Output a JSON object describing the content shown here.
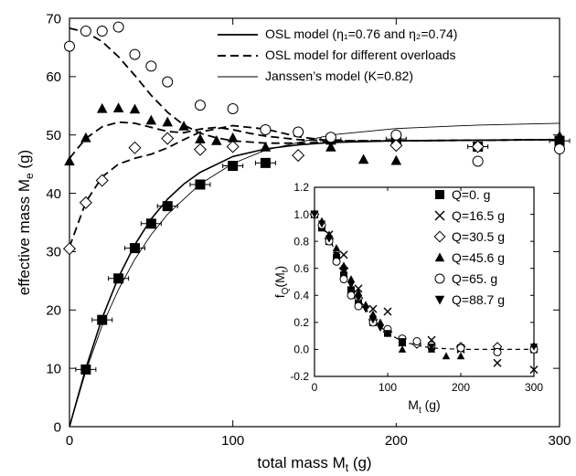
{
  "chart_data": [
    {
      "type": "scatter",
      "xlabel": {
        "main": "total mass M",
        "sub": "t",
        "tail": " (g)"
      },
      "ylabel": {
        "main": "effective mass M",
        "sub": "e",
        "tail": " (g)"
      },
      "xlim": [
        0,
        300
      ],
      "ylim": [
        0,
        70
      ],
      "xticks": [
        0,
        100,
        200,
        300
      ],
      "yticks": [
        0,
        10,
        20,
        30,
        40,
        50,
        60,
        70
      ],
      "legend": {
        "position": "top-right",
        "entries": [
          {
            "label": "OSL model (η₁=0.76 and η₂=0.74)",
            "style": "thick-solid"
          },
          {
            "label": "OSL model for different overloads",
            "style": "dashed"
          },
          {
            "label": "Janssen’s model (K=0.82)",
            "style": "thin-solid"
          }
        ]
      },
      "series": [
        {
          "name": "Q=0. g",
          "marker": "filled-square",
          "x": [
            10,
            20,
            30,
            40,
            50,
            60,
            80,
            100,
            120,
            160,
            200,
            250,
            300
          ],
          "y": [
            9.8,
            18.3,
            25.4,
            30.6,
            34.8,
            37.8,
            41.5,
            44.7,
            45.2,
            49.2,
            49.3,
            48.0,
            49.0
          ]
        },
        {
          "name": "Q=16.5 g",
          "marker": "cross",
          "x": [
            200
          ],
          "y": [
            49.2
          ]
        },
        {
          "name": "Q=30.5 g",
          "marker": "open-diamond",
          "x": [
            0,
            10,
            20,
            40,
            60,
            80,
            100,
            140,
            200,
            250
          ],
          "y": [
            30.5,
            38.4,
            42.2,
            47.8,
            49.4,
            47.5,
            48.0,
            46.5,
            48.2,
            48.0
          ]
        },
        {
          "name": "Q=45.6 g",
          "marker": "filled-triangle-up",
          "x": [
            0,
            10,
            20,
            30,
            40,
            50,
            60,
            70,
            80,
            90,
            100,
            120,
            160,
            180,
            200,
            300
          ],
          "y": [
            45.5,
            49.5,
            54.5,
            54.6,
            54.4,
            52.5,
            52.2,
            51.5,
            49.3,
            49.0,
            49.5,
            47.9,
            47.9,
            45.8,
            45.6,
            49.8
          ]
        },
        {
          "name": "Q=65. g",
          "marker": "open-circle",
          "x": [
            0,
            10,
            20,
            30,
            40,
            50,
            60,
            80,
            100,
            120,
            140,
            160,
            200,
            250,
            300
          ],
          "y": [
            65.2,
            67.8,
            67.8,
            68.5,
            63.8,
            61.8,
            59.1,
            55.1,
            54.5,
            50.9,
            50.5,
            49.6,
            50.0,
            45.5,
            47.6
          ]
        }
      ],
      "curves": [
        {
          "role": "osl-model",
          "x": [
            0,
            10,
            20,
            30,
            40,
            50,
            60,
            70,
            80,
            100,
            120,
            140,
            160,
            200,
            250,
            300
          ],
          "y": [
            0,
            10.0,
            18.6,
            25.6,
            31.2,
            35.6,
            39.0,
            41.6,
            43.6,
            46.3,
            47.6,
            48.3,
            48.7,
            49.0,
            49.1,
            49.2
          ]
        },
        {
          "role": "janssen-model",
          "x": [
            0,
            10,
            20,
            30,
            40,
            50,
            60,
            80,
            100,
            120,
            160,
            200,
            250,
            300
          ],
          "y": [
            0,
            9.5,
            17.3,
            23.5,
            28.7,
            32.9,
            36.4,
            41.6,
            45.1,
            47.4,
            50.0,
            51.1,
            51.7,
            52.0
          ]
        },
        {
          "role": "osl-overload-65",
          "x": [
            0,
            10,
            20,
            30,
            40,
            50,
            60,
            70,
            80,
            90,
            100,
            120,
            140,
            160,
            200,
            250,
            300
          ],
          "y": [
            68.3,
            67.6,
            66.0,
            63.4,
            60.2,
            56.8,
            53.9,
            51.7,
            50.3,
            49.5,
            49.0,
            48.6,
            48.6,
            48.8,
            49.0,
            49.1,
            49.2
          ]
        },
        {
          "role": "osl-overload-45.6",
          "x": [
            0,
            10,
            20,
            30,
            40,
            50,
            60,
            70,
            80,
            90,
            100,
            110,
            120,
            140,
            160,
            200,
            250,
            300
          ],
          "y": [
            46.0,
            49.4,
            51.4,
            52.2,
            52.0,
            51.3,
            50.6,
            50.4,
            51.0,
            51.3,
            50.9,
            50.3,
            49.8,
            49.2,
            49.0,
            49.0,
            49.1,
            49.2
          ]
        },
        {
          "role": "osl-overload-30.5",
          "x": [
            0,
            10,
            20,
            30,
            40,
            50,
            60,
            70,
            80,
            100,
            120,
            140,
            160,
            200,
            250,
            300
          ],
          "y": [
            30.8,
            38.5,
            42.8,
            45.0,
            46.0,
            46.7,
            47.8,
            49.2,
            50.5,
            51.6,
            51.0,
            49.7,
            49.0,
            49.0,
            49.1,
            49.2
          ]
        }
      ]
    },
    {
      "type": "scatter",
      "role": "inset",
      "xlabel": {
        "main": "M",
        "sub": "t",
        "tail": " (g)"
      },
      "ylabel": {
        "main": "f",
        "sub": "Q",
        "tail": "(M",
        "sub2": "t",
        "tail2": ")"
      },
      "xlim": [
        0,
        300
      ],
      "ylim": [
        -0.2,
        1.2
      ],
      "xticks": [
        0,
        100,
        200,
        300
      ],
      "yticks": [
        -0.2,
        0.0,
        0.2,
        0.4,
        0.6,
        0.8,
        1.0,
        1.2
      ],
      "yticklabels": [
        "-0.2",
        "0.0",
        "0.2",
        "0.4",
        "0.6",
        "0.8",
        "1.0",
        "1.2"
      ],
      "legend": {
        "position": "right",
        "entries": [
          {
            "label": "Q=0. g",
            "marker": "filled-square"
          },
          {
            "label": "Q=16.5 g",
            "marker": "cross"
          },
          {
            "label": "Q=30.5 g",
            "marker": "open-diamond"
          },
          {
            "label": "Q=45.6 g",
            "marker": "filled-triangle-up"
          },
          {
            "label": "Q=65. g",
            "marker": "open-circle"
          },
          {
            "label": "Q=88.7 g",
            "marker": "filled-triangle-down"
          }
        ]
      },
      "series": [
        {
          "name": "Q=0. g",
          "marker": "filled-square",
          "x": [
            0,
            10,
            20,
            30,
            40,
            50,
            60,
            80,
            100,
            120,
            160,
            200,
            250,
            300
          ],
          "y": [
            1.0,
            0.9,
            0.8,
            0.68,
            0.55,
            0.44,
            0.34,
            0.2,
            0.12,
            0.05,
            0.02,
            0.01,
            0.0,
            0.0
          ]
        },
        {
          "name": "Q=16.5 g",
          "marker": "cross",
          "x": [
            0,
            20,
            40,
            60,
            80,
            100,
            120,
            160,
            200,
            250,
            300
          ],
          "y": [
            1.0,
            0.85,
            0.7,
            0.45,
            0.3,
            0.28,
            0.05,
            0.07,
            0.0,
            -0.1,
            -0.15
          ]
        },
        {
          "name": "Q=30.5 g",
          "marker": "open-diamond",
          "x": [
            0,
            20,
            40,
            60,
            80,
            100,
            140,
            200,
            250
          ],
          "y": [
            1.0,
            0.82,
            0.6,
            0.38,
            0.22,
            0.13,
            0.04,
            0.02,
            0.02
          ]
        },
        {
          "name": "Q=45.6 g",
          "marker": "filled-triangle-up",
          "x": [
            0,
            10,
            20,
            30,
            40,
            50,
            60,
            70,
            80,
            90,
            100,
            120,
            160,
            180,
            200,
            300
          ],
          "y": [
            1.0,
            0.95,
            0.85,
            0.75,
            0.62,
            0.52,
            0.42,
            0.33,
            0.26,
            0.2,
            0.15,
            0.0,
            0.0,
            -0.05,
            -0.05,
            0.03
          ]
        },
        {
          "name": "Q=65. g",
          "marker": "open-circle",
          "x": [
            0,
            10,
            20,
            30,
            40,
            50,
            60,
            80,
            100,
            120,
            140,
            160,
            200,
            250,
            300
          ],
          "y": [
            1.0,
            0.92,
            0.8,
            0.65,
            0.52,
            0.4,
            0.32,
            0.2,
            0.15,
            0.08,
            0.06,
            0.03,
            0.01,
            -0.02,
            0.0
          ]
        },
        {
          "name": "Q=88.7 g",
          "marker": "filled-triangle-down",
          "x": [
            0,
            10,
            20,
            30,
            40,
            50,
            60,
            70,
            80,
            90,
            100,
            120,
            160,
            300
          ],
          "y": [
            1.0,
            0.93,
            0.82,
            0.7,
            0.58,
            0.48,
            0.38,
            0.3,
            0.22,
            0.16,
            0.12,
            0.06,
            0.02,
            0.02
          ]
        }
      ],
      "curves": [
        {
          "role": "fit",
          "style": "dashed",
          "x": [
            0,
            10,
            20,
            30,
            40,
            50,
            60,
            80,
            100,
            120,
            140,
            160,
            200,
            250,
            300
          ],
          "y": [
            1.0,
            0.92,
            0.82,
            0.71,
            0.59,
            0.48,
            0.38,
            0.22,
            0.12,
            0.06,
            0.03,
            0.01,
            0.0,
            0.0,
            0.0
          ]
        }
      ]
    }
  ]
}
